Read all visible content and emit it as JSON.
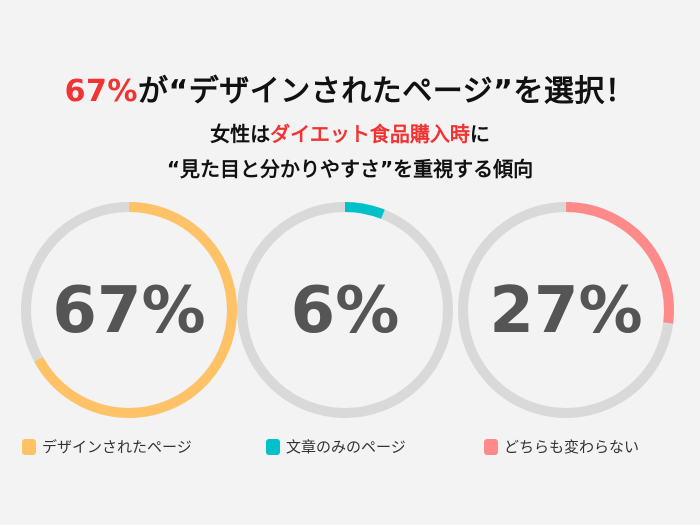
{
  "header": {
    "title_highlight": "67%",
    "title_rest": "が“デザインされたページ”を選択！",
    "line2_pre": "女性は",
    "line2_highlight": "ダイエット食品購入時",
    "line2_post": "に",
    "line3": "“見た目と分かりやすさ”を重視する傾向"
  },
  "colors": {
    "highlight": "#f03434",
    "track": "#d9d9d9",
    "value_text": "#555555"
  },
  "chart_data": {
    "type": "donut",
    "series": [
      {
        "name": "デザインされたページ",
        "value": 67,
        "label": "67%",
        "color": "#ffc266"
      },
      {
        "name": "文章のみのページ",
        "value": 6,
        "label": "6%",
        "color": "#00c0c9"
      },
      {
        "name": "どちらも変わらない",
        "value": 27,
        "label": "27%",
        "color": "#ff8a8a"
      }
    ],
    "legend_placement": "bottom"
  }
}
